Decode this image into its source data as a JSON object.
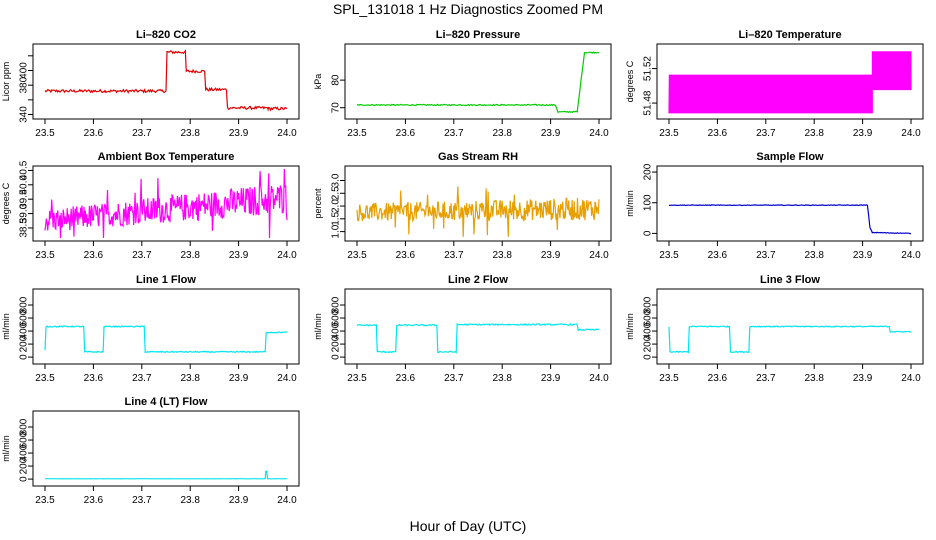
{
  "page": {
    "title": "SPL_131018  1 Hz Diagnostics Zoomed PM",
    "x_caption": "Hour of Day (UTC)"
  },
  "chart_data": [
    {
      "type": "line",
      "title": "Li–820 CO2",
      "xlabel": "",
      "ylabel": "Licor ppm",
      "xlim": [
        23.5,
        24.0
      ],
      "ylim": [
        338,
        432
      ],
      "xticks": [
        23.5,
        23.6,
        23.7,
        23.8,
        23.9,
        24.0
      ],
      "xtick_labels": [
        "23.5",
        "23.6",
        "23.7",
        "23.8",
        "23.9",
        "24.0"
      ],
      "yticks": [
        340,
        360,
        380,
        400,
        420
      ],
      "ytick_labels": [
        "340",
        "",
        "380",
        "400",
        ""
      ],
      "color": "#e00000",
      "series": [
        {
          "x": [
            23.5,
            23.75,
            23.752,
            23.79,
            23.792,
            23.83,
            23.832,
            23.875,
            23.877,
            23.96,
            23.962,
            24.0
          ],
          "y": [
            372,
            372,
            425,
            425,
            399,
            399,
            374,
            374,
            349,
            349,
            348,
            348
          ],
          "noise": 2
        }
      ]
    },
    {
      "type": "line",
      "title": "Li–820 Pressure",
      "xlabel": "",
      "ylabel": "kPa",
      "xlim": [
        23.5,
        24.0
      ],
      "ylim": [
        67,
        92
      ],
      "xticks": [
        23.5,
        23.6,
        23.7,
        23.8,
        23.9,
        24.0
      ],
      "xtick_labels": [
        "23.5",
        "23.6",
        "23.7",
        "23.8",
        "23.9",
        "24.0"
      ],
      "yticks": [
        70,
        80
      ],
      "ytick_labels": [
        "70",
        "80"
      ],
      "color": "#00cc00",
      "series": [
        {
          "x": [
            23.5,
            23.91,
            23.915,
            23.955,
            23.965,
            23.97,
            24.0
          ],
          "y": [
            71,
            71,
            68.5,
            68.5,
            83,
            90,
            90
          ],
          "noise": 0.2
        }
      ]
    },
    {
      "type": "line",
      "title": "Li–820 Temperature",
      "xlabel": "",
      "ylabel": "degrees C",
      "xlim": [
        23.5,
        24.0
      ],
      "ylim": [
        51.465,
        51.545
      ],
      "xticks": [
        23.5,
        23.6,
        23.7,
        23.8,
        23.9,
        24.0
      ],
      "xtick_labels": [
        "23.5",
        "23.6",
        "23.7",
        "23.8",
        "23.9",
        "24.0"
      ],
      "yticks": [
        51.48,
        51.52
      ],
      "ytick_labels": [
        "51.48",
        "51.52"
      ],
      "color": "#ff00ff",
      "series": [
        {
          "x": [
            23.5,
            23.92
          ],
          "y_band": [
            51.468,
            51.513
          ],
          "x2": [
            23.92,
            24.0
          ],
          "y_band2": [
            51.495,
            51.54
          ]
        }
      ]
    },
    {
      "type": "line",
      "title": "Ambient Box Temperature",
      "xlabel": "",
      "ylabel": "degrees C",
      "xlim": [
        23.5,
        24.0
      ],
      "ylim": [
        38.15,
        40.55
      ],
      "xticks": [
        23.5,
        23.6,
        23.7,
        23.8,
        23.9,
        24.0
      ],
      "xtick_labels": [
        "23.5",
        "23.6",
        "23.7",
        "23.8",
        "23.9",
        "24.0"
      ],
      "yticks": [
        38.5,
        39.0,
        39.5,
        40.0,
        40.5
      ],
      "ytick_labels": [
        "38.5",
        "39.0",
        "39.5",
        "40.0",
        "40.5"
      ],
      "color": "#ff00ff",
      "series": [
        {
          "x": [
            23.5,
            24.0
          ],
          "y_center": [
            38.75,
            39.55
          ],
          "half_width": [
            0.4,
            0.55
          ]
        }
      ]
    },
    {
      "type": "line",
      "title": "Gas Stream RH",
      "xlabel": "",
      "ylabel": "percent",
      "xlim": [
        23.5,
        24.0
      ],
      "ylim": [
        0.75,
        3.45
      ],
      "xticks": [
        23.5,
        23.6,
        23.7,
        23.8,
        23.9,
        24.0
      ],
      "xtick_labels": [
        "23.5",
        "23.6",
        "23.7",
        "23.8",
        "23.9",
        "24.0"
      ],
      "yticks": [
        1.0,
        1.5,
        2.0,
        2.5,
        3.0
      ],
      "ytick_labels": [
        "1.0",
        "1.5",
        "2.0",
        "2.5",
        "3.0"
      ],
      "color": "#e8a000",
      "series": [
        {
          "x": [
            23.5,
            24.0
          ],
          "y_center": [
            1.75,
            1.9
          ],
          "half_width": [
            0.35,
            0.45
          ]
        }
      ]
    },
    {
      "type": "line",
      "title": "Sample Flow",
      "xlabel": "",
      "ylabel": "ml/min",
      "xlim": [
        23.5,
        24.0
      ],
      "ylim": [
        -15,
        210
      ],
      "xticks": [
        23.5,
        23.6,
        23.7,
        23.8,
        23.9,
        24.0
      ],
      "xtick_labels": [
        "23.5",
        "23.6",
        "23.7",
        "23.8",
        "23.9",
        "24.0"
      ],
      "yticks": [
        0,
        100,
        200
      ],
      "ytick_labels": [
        "0",
        "100",
        "200"
      ],
      "color": "#0000cc",
      "series": [
        {
          "x": [
            23.5,
            23.91,
            23.915,
            23.92,
            24.0
          ],
          "y": [
            92,
            92,
            20,
            3,
            0
          ],
          "noise": 1
        }
      ]
    },
    {
      "type": "line",
      "title": "Line 1 Flow",
      "xlabel": "",
      "ylabel": "ml/min",
      "xlim": [
        23.5,
        24.0
      ],
      "ylim": [
        -60,
        1000
      ],
      "xticks": [
        23.5,
        23.6,
        23.7,
        23.8,
        23.9,
        24.0
      ],
      "xtick_labels": [
        "23.5",
        "23.6",
        "23.7",
        "23.8",
        "23.9",
        "24.0"
      ],
      "yticks": [
        0,
        200,
        400,
        600,
        800
      ],
      "ytick_labels": [
        "0",
        "200",
        "400",
        "600",
        "800"
      ],
      "color": "#00e5ee",
      "series": [
        {
          "x": [
            23.5,
            23.502,
            23.58,
            23.582,
            23.62,
            23.622,
            23.705,
            23.707,
            23.955,
            23.957,
            24.0
          ],
          "y": [
            100,
            470,
            470,
            80,
            80,
            470,
            470,
            80,
            80,
            380,
            380
          ],
          "noise": 8
        }
      ]
    },
    {
      "type": "line",
      "title": "Line 2 Flow",
      "xlabel": "",
      "ylabel": "ml/min",
      "xlim": [
        23.5,
        24.0
      ],
      "ylim": [
        -60,
        1000
      ],
      "xticks": [
        23.5,
        23.6,
        23.7,
        23.8,
        23.9,
        24.0
      ],
      "xtick_labels": [
        "23.5",
        "23.6",
        "23.7",
        "23.8",
        "23.9",
        "24.0"
      ],
      "yticks": [
        0,
        200,
        400,
        600,
        800
      ],
      "ytick_labels": [
        "0",
        "200",
        "400",
        "600",
        "800"
      ],
      "color": "#00e5ee",
      "series": [
        {
          "x": [
            23.5,
            23.54,
            23.542,
            23.58,
            23.582,
            23.665,
            23.667,
            23.705,
            23.707,
            23.955,
            23.957,
            24.0
          ],
          "y": [
            490,
            490,
            80,
            80,
            490,
            490,
            80,
            80,
            500,
            500,
            420,
            420
          ],
          "noise": 10
        }
      ]
    },
    {
      "type": "line",
      "title": "Line 3 Flow",
      "xlabel": "",
      "ylabel": "ml/min",
      "xlim": [
        23.5,
        24.0
      ],
      "ylim": [
        -60,
        1000
      ],
      "xticks": [
        23.5,
        23.6,
        23.7,
        23.8,
        23.9,
        24.0
      ],
      "xtick_labels": [
        "23.5",
        "23.6",
        "23.7",
        "23.8",
        "23.9",
        "24.0"
      ],
      "yticks": [
        0,
        200,
        400,
        600,
        800
      ],
      "ytick_labels": [
        "0",
        "200",
        "400",
        "600",
        "800"
      ],
      "color": "#00e5ee",
      "series": [
        {
          "x": [
            23.5,
            23.502,
            23.54,
            23.542,
            23.625,
            23.627,
            23.665,
            23.667,
            23.955,
            23.957,
            24.0
          ],
          "y": [
            470,
            80,
            80,
            470,
            470,
            80,
            80,
            470,
            470,
            390,
            390
          ],
          "noise": 8
        }
      ]
    },
    {
      "type": "line",
      "title": "Line 4 (LT) Flow",
      "xlabel": "",
      "ylabel": "ml/min",
      "xlim": [
        23.5,
        24.0
      ],
      "ylim": [
        -60,
        1000
      ],
      "xticks": [
        23.5,
        23.6,
        23.7,
        23.8,
        23.9,
        24.0
      ],
      "xtick_labels": [
        "23.5",
        "23.6",
        "23.7",
        "23.8",
        "23.9",
        "24.0"
      ],
      "yticks": [
        0,
        200,
        400,
        600,
        800
      ],
      "ytick_labels": [
        "0",
        "200",
        "400",
        "600",
        "800"
      ],
      "color": "#00e5ee",
      "series": [
        {
          "x": [
            23.5,
            23.955,
            23.956,
            23.958,
            23.96,
            24.0
          ],
          "y": [
            5,
            5,
            120,
            120,
            5,
            5
          ],
          "noise": 1
        }
      ]
    }
  ]
}
